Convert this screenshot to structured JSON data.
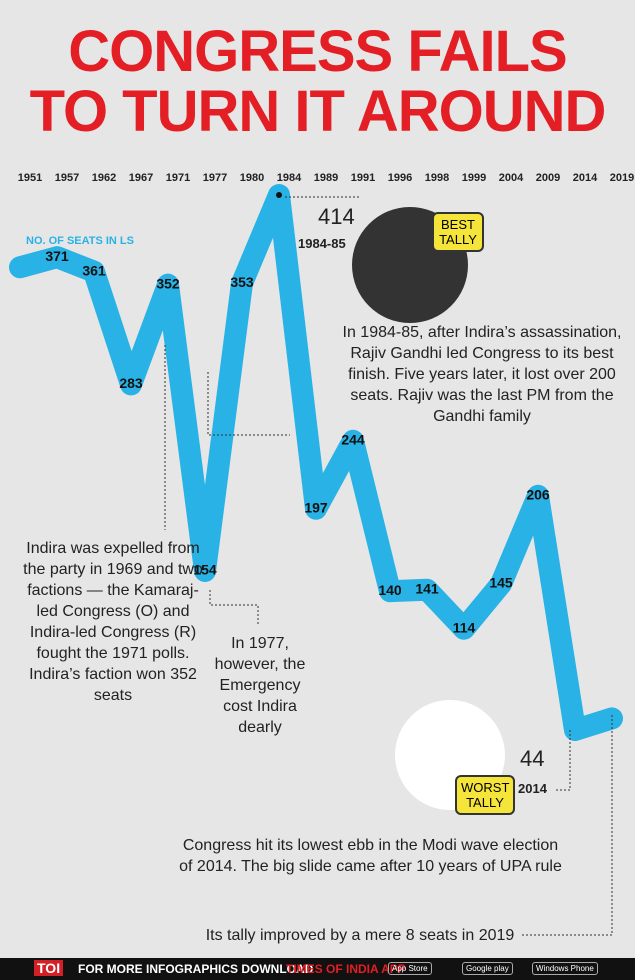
{
  "chart_data": {
    "type": "line",
    "title": [
      "CONGRESS FAILS",
      "TO TURN IT AROUND"
    ],
    "y_label": "NO. OF SEATS IN LS",
    "categories": [
      "1951",
      "1957",
      "1962",
      "1967",
      "1971",
      "1977",
      "1980",
      "1984",
      "1989",
      "1991",
      "1996",
      "1998",
      "1999",
      "2004",
      "2009",
      "2014",
      "2019"
    ],
    "values": [
      364,
      371,
      361,
      283,
      352,
      154,
      353,
      414,
      197,
      244,
      140,
      141,
      114,
      145,
      206,
      44,
      52
    ],
    "value_labels": [
      null,
      "371",
      "361",
      "283",
      "352",
      "154",
      "353",
      null,
      "197",
      "244",
      "140",
      "141",
      "114",
      "145",
      "206",
      null,
      null
    ],
    "color": "#29b2e6",
    "annotations": [
      "1984-85",
      "BEST TALLY",
      "In 1984-85, after Indira’s assassination, Rajiv Gandhi led Congress to its best finish. Five years later, it lost over 200 seats. Rajiv was the last PM from the Gandhi family",
      "Indira was expelled from the party in 1969 and two factions — the Kamaraj-led Congress (O) and Indira-led Congress (R) fought the 1971 polls. Indira’s faction won 352 seats",
      "In 1977, however, the Emergency cost Indira dearly",
      "2014",
      "WORST TALLY",
      "Congress hit its lowest ebb in the Modi wave election of 2014. The big slide came after 10 years of UPA rule",
      "Its tally improved by a mere 8 seats in 2019"
    ]
  },
  "footer": {
    "logo": "TOI",
    "text": "FOR MORE INFOGRAPHICS DOWNLOAD",
    "app": "TIMES OF INDIA APP",
    "badges": [
      "App Store",
      "Google play",
      "Windows Phone"
    ]
  }
}
